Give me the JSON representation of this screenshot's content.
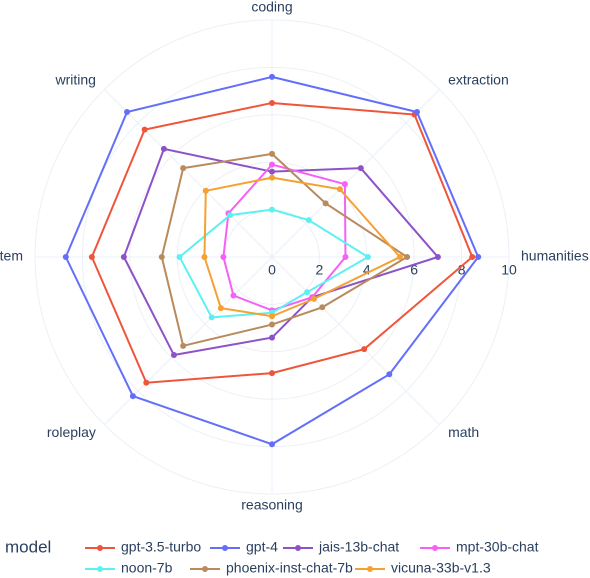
{
  "chart_data": {
    "type": "radar",
    "categories": [
      "coding",
      "extraction",
      "humanities",
      "math",
      "reasoning",
      "roleplay",
      "stem",
      "writing"
    ],
    "rlim": [
      0,
      10
    ],
    "rticks": [
      0,
      2,
      4,
      6,
      8,
      10
    ],
    "legend_title": "model",
    "series": [
      {
        "name": "gpt-3.5-turbo",
        "color": "#ef553b",
        "values": [
          6.5,
          8.5,
          8.45,
          5.5,
          4.9,
          7.5,
          7.6,
          7.6
        ]
      },
      {
        "name": "gpt-4",
        "color": "#636efa",
        "values": [
          7.6,
          8.65,
          8.7,
          7.0,
          7.9,
          8.3,
          8.7,
          8.65
        ]
      },
      {
        "name": "jais-13b-chat",
        "color": "#8e52c8",
        "values": [
          3.6,
          5.3,
          7.0,
          2.4,
          3.4,
          5.85,
          6.25,
          6.45
        ]
      },
      {
        "name": "mpt-30b-chat",
        "color": "#f660f6",
        "values": [
          3.9,
          4.35,
          3.1,
          2.4,
          2.25,
          2.3,
          2.05,
          2.6
        ]
      },
      {
        "name": "noon-7b",
        "color": "#5ef0f0",
        "values": [
          2.0,
          2.2,
          4.05,
          2.1,
          2.35,
          3.6,
          3.9,
          2.5
        ]
      },
      {
        "name": "phoenix-inst-chat-7b",
        "color": "#b88a5c",
        "values": [
          4.35,
          3.2,
          5.7,
          3.0,
          2.85,
          5.3,
          4.65,
          5.3
        ]
      },
      {
        "name": "vicuna-33b-v1.3",
        "color": "#f5a032",
        "values": [
          3.35,
          4.05,
          5.4,
          2.5,
          2.5,
          3.05,
          2.85,
          3.95
        ]
      }
    ]
  }
}
